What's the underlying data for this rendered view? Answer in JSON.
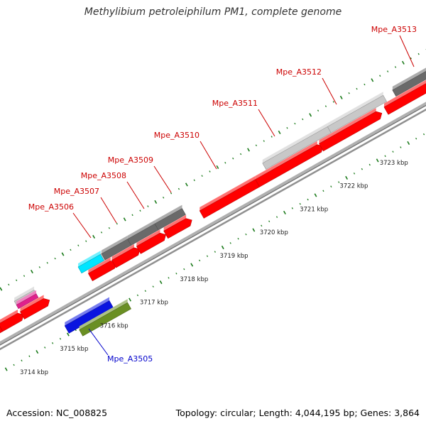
{
  "title": "Methylibium petroleiphilum PM1, complete genome",
  "footer": {
    "accession": "Accession: NC_008825",
    "summary": "Topology: circular; Length: 4,044,195 bp; Genes: 3,864"
  },
  "colors": {
    "forward_gene": "#ff0000",
    "gene_label_red": "#cc0000",
    "gene_label_blue": "#0000cc",
    "tick": "#1a7a1a",
    "backbone": "#a0a0a0",
    "feature_dark_gray": "#6a6a6a",
    "feature_light_gray": "#c8c8c8",
    "feature_cyan": "#00e5ff",
    "feature_magenta": "#e0208c",
    "feature_blue": "#0a14e0",
    "feature_olive": "#6a8f23"
  },
  "chart_data": {
    "type": "genome_map",
    "title": "Methylibium petroleiphilum PM1, complete genome",
    "scale_labels": [
      {
        "kbp": 3714,
        "label": "3714 kbp"
      },
      {
        "kbp": 3715,
        "label": "3715 kbp"
      },
      {
        "kbp": 3716,
        "label": "3716 kbp"
      },
      {
        "kbp": 3717,
        "label": "3717 kbp"
      },
      {
        "kbp": 3718,
        "label": "3718 kbp"
      },
      {
        "kbp": 3719,
        "label": "3719 kbp"
      },
      {
        "kbp": 3720,
        "label": "3720 kbp"
      },
      {
        "kbp": 3721,
        "label": "3721 kbp"
      },
      {
        "kbp": 3722,
        "label": "3722 kbp"
      },
      {
        "kbp": 3723,
        "label": "3723 kbp"
      }
    ],
    "genes": [
      {
        "name": "Mpe_A3505",
        "color": "blue"
      },
      {
        "name": "Mpe_A3506",
        "color": "red"
      },
      {
        "name": "Mpe_A3507",
        "color": "red"
      },
      {
        "name": "Mpe_A3508",
        "color": "red"
      },
      {
        "name": "Mpe_A3509",
        "color": "red"
      },
      {
        "name": "Mpe_A3510",
        "color": "red"
      },
      {
        "name": "Mpe_A3511",
        "color": "red"
      },
      {
        "name": "Mpe_A3512",
        "color": "red"
      },
      {
        "name": "Mpe_A3513",
        "color": "red"
      }
    ]
  }
}
